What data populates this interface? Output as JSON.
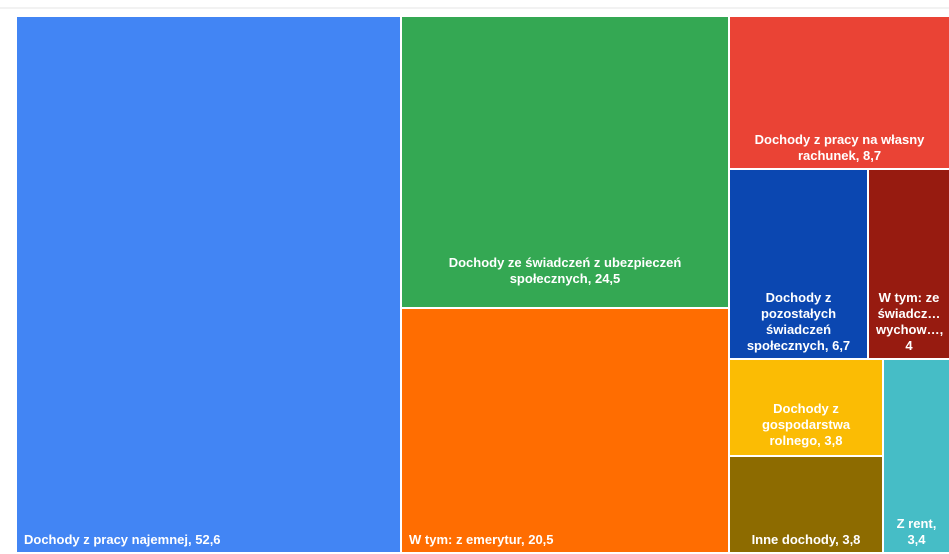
{
  "chart_data": {
    "type": "treemap",
    "categories": [
      "Dochody z pracy najemnej",
      "Dochody ze świadczeń z ubezpieczeń społecznych",
      "W tym: z emerytur",
      "Dochody z pracy na własny rachunek",
      "Dochody z pozostałych świadczeń społecznych",
      "W tym: ze świadcz… wychow…",
      "Dochody z gospodarstwa rolnego",
      "Inne dochody",
      "Z rent"
    ],
    "values": [
      52.6,
      24.5,
      20.5,
      8.7,
      6.7,
      4,
      3.8,
      3.8,
      3.4
    ],
    "value_labels": [
      "52,6",
      "24,5",
      "20,5",
      "8,7",
      "6,7",
      "4",
      "3,8",
      "3,8",
      "3,4"
    ],
    "colors": [
      "#4285f4",
      "#34a853",
      "#ff6d01",
      "#ea4335",
      "#0b47b1",
      "#971b10",
      "#fbbc04",
      "#8d6b00",
      "#46bdc6"
    ]
  }
}
